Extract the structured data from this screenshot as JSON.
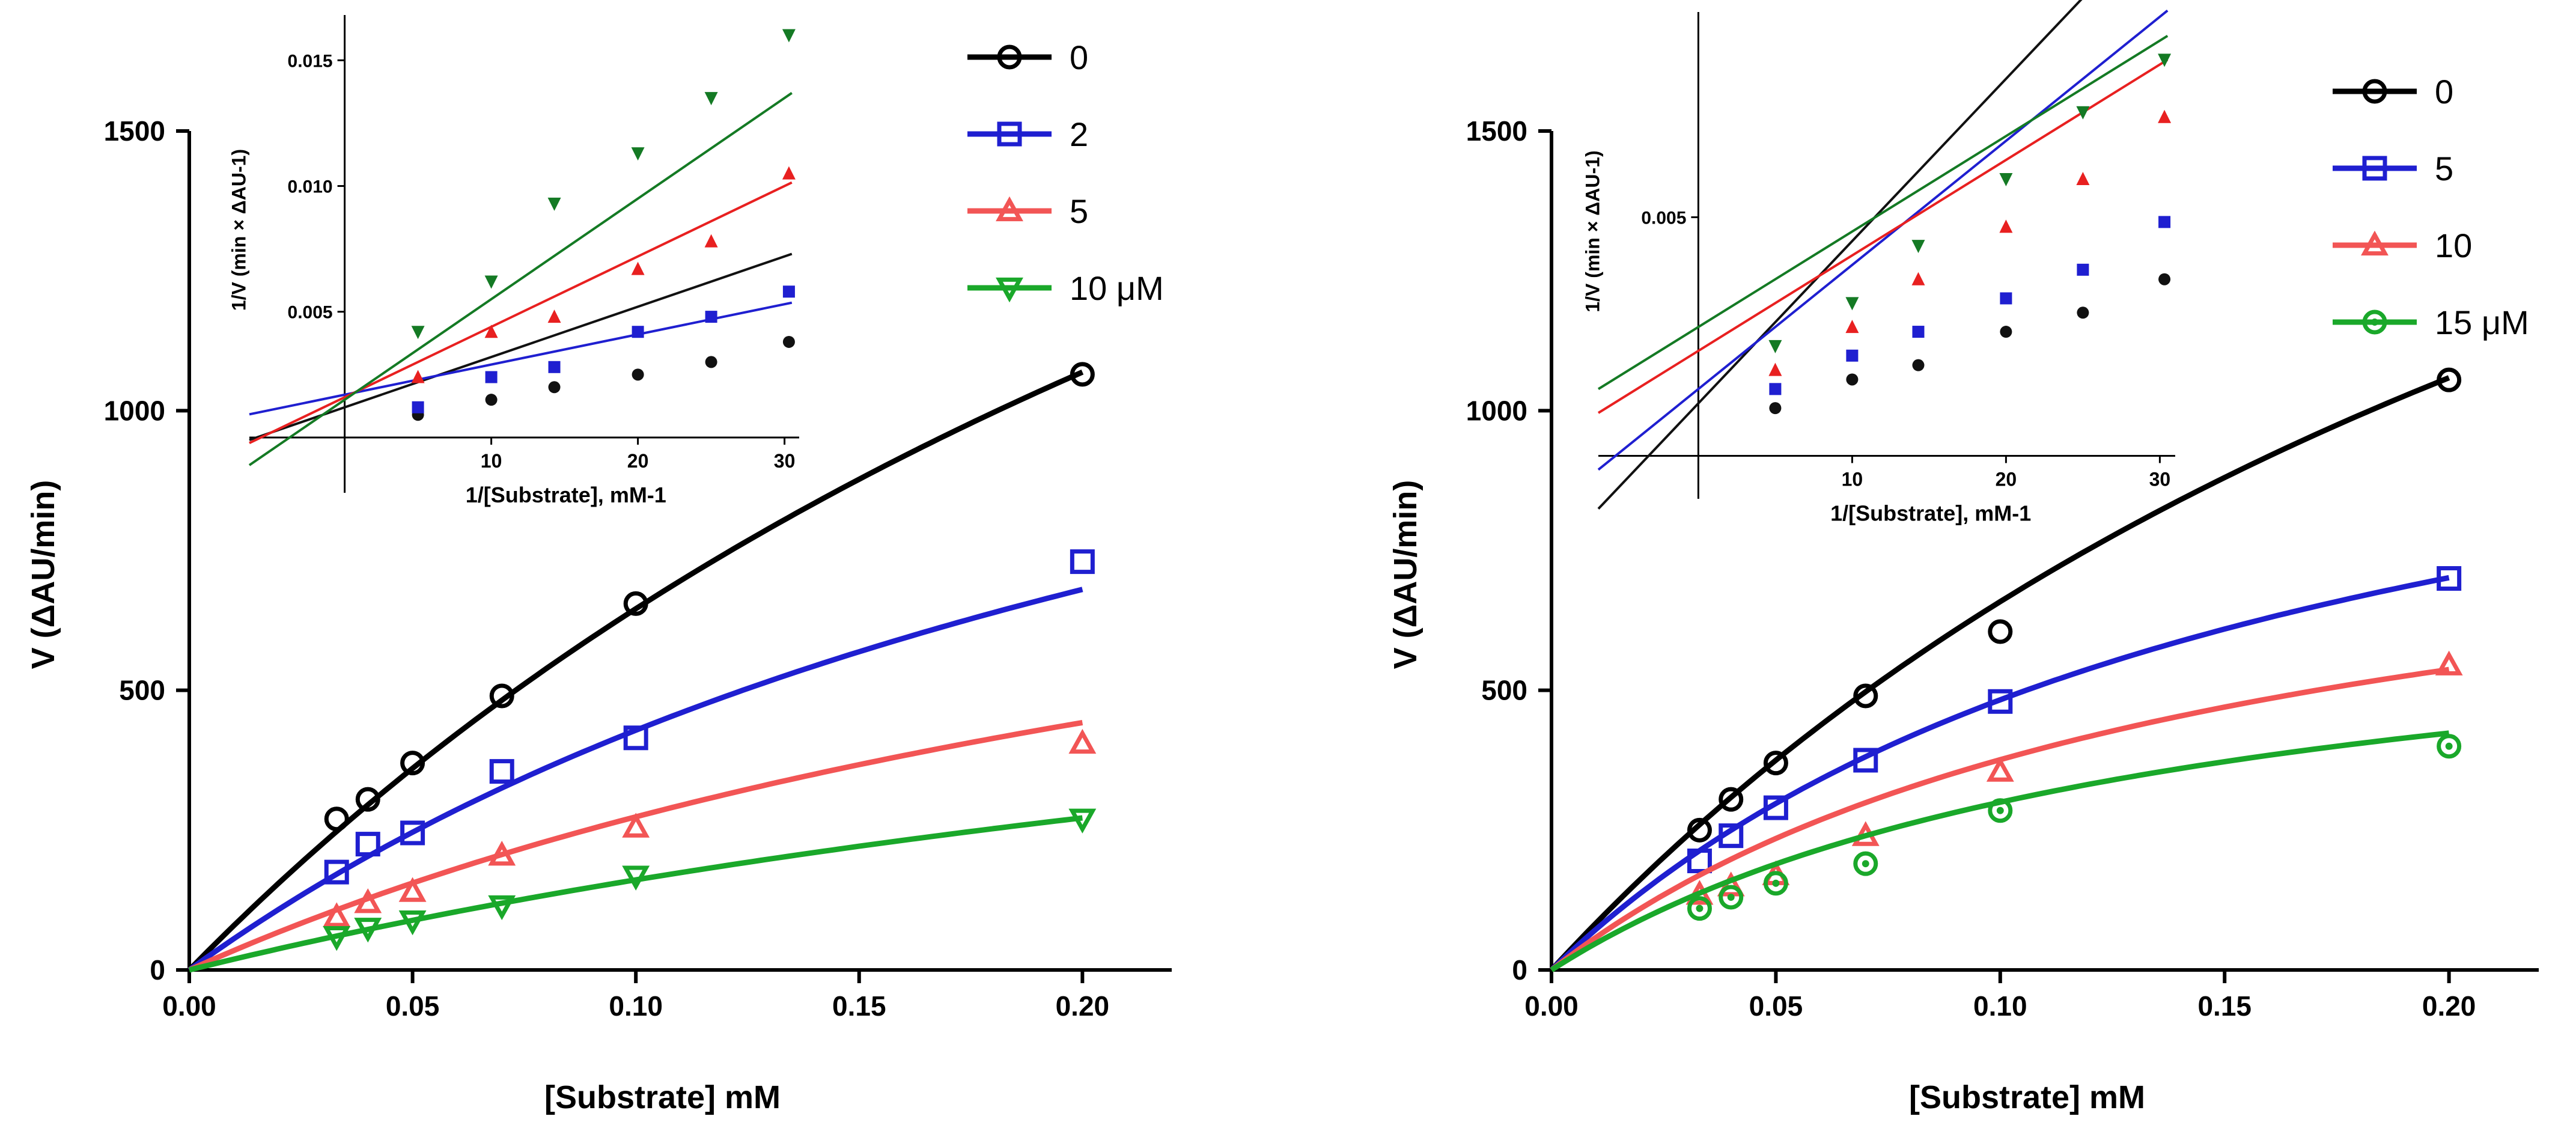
{
  "chart_data": [
    {
      "type": "scatter",
      "title": "",
      "xlabel": "[Substrate] mM",
      "ylabel": "V (ΔAU/min)",
      "xlim": [
        0,
        0.22
      ],
      "ylim": [
        0,
        1500
      ],
      "xticks": [
        "0.00",
        "0.05",
        "0.10",
        "0.15",
        "0.20"
      ],
      "yticks": [
        "0",
        "500",
        "1000",
        "1500"
      ],
      "x": [
        0.033,
        0.04,
        0.05,
        0.07,
        0.1,
        0.2
      ],
      "legend": [
        "0",
        "2",
        "5",
        "10 μM"
      ],
      "series": [
        {
          "name": "0",
          "color": "#000000",
          "marker": "circle",
          "values": [
            270,
            305,
            370,
            490,
            655,
            1065
          ],
          "vmax": 3100,
          "km": 0.38
        },
        {
          "name": "2",
          "color": "#1f1fd0",
          "marker": "square",
          "values": [
            175,
            225,
            245,
            355,
            415,
            730
          ],
          "vmax": 1650,
          "km": 0.285
        },
        {
          "name": "5",
          "color": "#f25555",
          "marker": "triangle",
          "values": [
            95,
            120,
            140,
            205,
            255,
            405
          ],
          "vmax": 1150,
          "km": 0.32
        },
        {
          "name": "10 μM",
          "color": "#1aa82a",
          "marker": "triangle-down",
          "values": [
            60,
            75,
            88,
            115,
            168,
            270
          ],
          "vmax": 870,
          "km": 0.44
        }
      ],
      "inset": {
        "type": "line",
        "xlabel": "1/[Substrate], mM-1",
        "ylabel": "1/V (min × ΔAU-1)",
        "xticks": [
          "10",
          "20",
          "30"
        ],
        "yticks": [
          "0.005",
          "0.010",
          "0.015"
        ],
        "xlim": [
          -6.5,
          31
        ],
        "ylim": [
          -0.0022,
          0.0168
        ],
        "x": [
          5,
          10,
          14.3,
          20,
          25,
          30.3
        ],
        "series": [
          {
            "name": "0",
            "color": "#111111",
            "values": [
              0.0009,
              0.0015,
              0.002,
              0.0025,
              0.003,
              0.0038
            ],
            "fit": [
              0.0002,
              0.0012
            ]
          },
          {
            "name": "2",
            "color": "#1f1fd0",
            "values": [
              0.0012,
              0.0024,
              0.0028,
              0.0042,
              0.0048,
              0.0058
            ],
            "fit": [
              0.00012,
              0.0017
            ]
          },
          {
            "name": "5",
            "color": "#e82020",
            "values": [
              0.0024,
              0.0042,
              0.0048,
              0.0067,
              0.0078,
              0.0105
            ],
            "fit": [
              0.00028,
              0.0016
            ]
          },
          {
            "name": "10 μM",
            "color": "#147a24",
            "values": [
              0.0042,
              0.0062,
              0.0093,
              0.0113,
              0.0135,
              0.016
            ],
            "fit": [
              0.0004,
              0.0015
            ]
          }
        ]
      }
    },
    {
      "type": "scatter",
      "title": "",
      "xlabel": "[Substrate] mM",
      "ylabel": "V (ΔAU/min)",
      "xlim": [
        0,
        0.22
      ],
      "ylim": [
        0,
        1500
      ],
      "xticks": [
        "0.00",
        "0.05",
        "0.10",
        "0.15",
        "0.20"
      ],
      "yticks": [
        "0",
        "500",
        "1000",
        "1500"
      ],
      "x": [
        0.033,
        0.04,
        0.05,
        0.07,
        0.1,
        0.2
      ],
      "legend": [
        "0",
        "5",
        "10",
        "15 μM"
      ],
      "series": [
        {
          "name": "0",
          "color": "#000000",
          "marker": "circle",
          "values": [
            250,
            305,
            370,
            490,
            605,
            1055
          ],
          "vmax": 2700,
          "km": 0.31
        },
        {
          "name": "5",
          "color": "#1f1fd0",
          "marker": "square",
          "values": [
            195,
            240,
            290,
            375,
            480,
            700
          ],
          "vmax": 1280,
          "km": 0.165
        },
        {
          "name": "10",
          "color": "#f25555",
          "marker": "triangle",
          "values": [
            135,
            150,
            170,
            240,
            355,
            545
          ],
          "vmax": 940,
          "km": 0.15
        },
        {
          "name": "15 μM",
          "color": "#1aa82a",
          "marker": "circle-dot",
          "values": [
            110,
            130,
            155,
            190,
            285,
            400
          ],
          "vmax": 720,
          "km": 0.14
        }
      ],
      "inset": {
        "type": "line",
        "xlabel": "1/[Substrate], mM-1",
        "ylabel": "1/V (min × ΔAU-1)",
        "xticks": [
          "10",
          "20",
          "30"
        ],
        "yticks": [
          "0.005"
        ],
        "xlim": [
          -6.5,
          31
        ],
        "ylim": [
          -0.0009,
          0.0093
        ],
        "x": [
          5,
          10,
          14.3,
          20,
          25,
          30.3
        ],
        "series": [
          {
            "name": "0",
            "color": "#111111",
            "values": [
              0.001,
              0.0016,
              0.0019,
              0.0026,
              0.003,
              0.0037
            ],
            "fit": [
              0.00034,
              0.0011
            ]
          },
          {
            "name": "5",
            "color": "#1f1fd0",
            "values": [
              0.0014,
              0.0021,
              0.0026,
              0.0033,
              0.0039,
              0.0049
            ],
            "fit": [
              0.00026,
              0.0014
            ]
          },
          {
            "name": "10",
            "color": "#e82020",
            "values": [
              0.0018,
              0.0027,
              0.0037,
              0.0048,
              0.0058,
              0.0071
            ],
            "fit": [
              0.0002,
              0.0022
            ]
          },
          {
            "name": "15 μM",
            "color": "#147a24",
            "values": [
              0.0023,
              0.0032,
              0.0044,
              0.0058,
              0.0072,
              0.0083
            ],
            "fit": [
              0.0002,
              0.0027
            ]
          }
        ]
      }
    }
  ]
}
